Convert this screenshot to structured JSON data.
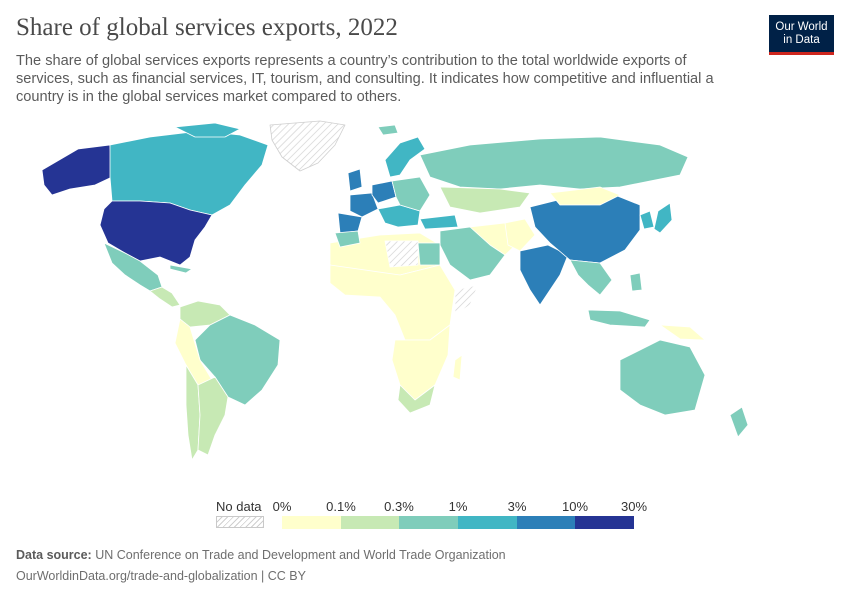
{
  "header": {
    "title": "Share of global services exports, 2022",
    "subtitle": "The share of global services exports represents a country’s contribution to the total worldwide exports of services, such as financial services, IT, tourism, and consulting. It indicates how competitive and influential a country is in the global services market compared to others.",
    "logo_line1": "Our World",
    "logo_line2": "in Data"
  },
  "legend": {
    "nodata_label": "No data",
    "ticks": [
      "0%",
      "0.1%",
      "0.3%",
      "1%",
      "3%",
      "10%",
      "30%"
    ],
    "colors": [
      "#ffffcc",
      "#c7e9b4",
      "#7fcdbb",
      "#41b6c4",
      "#2c7fb8",
      "#253494"
    ]
  },
  "footer": {
    "source_label": "Data source:",
    "source_text": "UN Conference on Trade and Development and World Trade Organization",
    "url_text": "OurWorldinData.org/trade-and-globalization | CC BY"
  }
}
